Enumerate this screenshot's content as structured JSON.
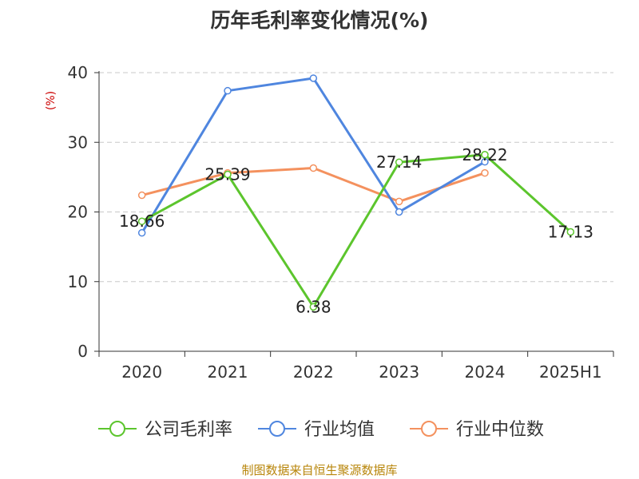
{
  "chart_data": {
    "type": "line",
    "title": "历年毛利率变化情况(%)",
    "ylabel": "(%)",
    "xlabel": "",
    "categories": [
      "2020",
      "2021",
      "2022",
      "2023",
      "2024",
      "2025H1"
    ],
    "ylim": [
      0,
      40
    ],
    "yticks": [
      0,
      10,
      20,
      30,
      40
    ],
    "grid": true,
    "legend_position": "bottom",
    "series": [
      {
        "name": "公司毛利率",
        "color": "#5cc52d",
        "values": [
          18.66,
          25.39,
          6.38,
          27.14,
          28.22,
          17.13
        ],
        "show_labels": true
      },
      {
        "name": "行业均值",
        "color": "#4f86df",
        "values": [
          17.0,
          37.4,
          39.2,
          20.0,
          27.2,
          null
        ],
        "show_labels": false
      },
      {
        "name": "行业中位数",
        "color": "#f4915e",
        "values": [
          22.4,
          25.6,
          26.3,
          21.5,
          25.6,
          null
        ],
        "show_labels": false
      }
    ]
  },
  "footer": {
    "source": "制图数据来自恒生聚源数据库"
  }
}
